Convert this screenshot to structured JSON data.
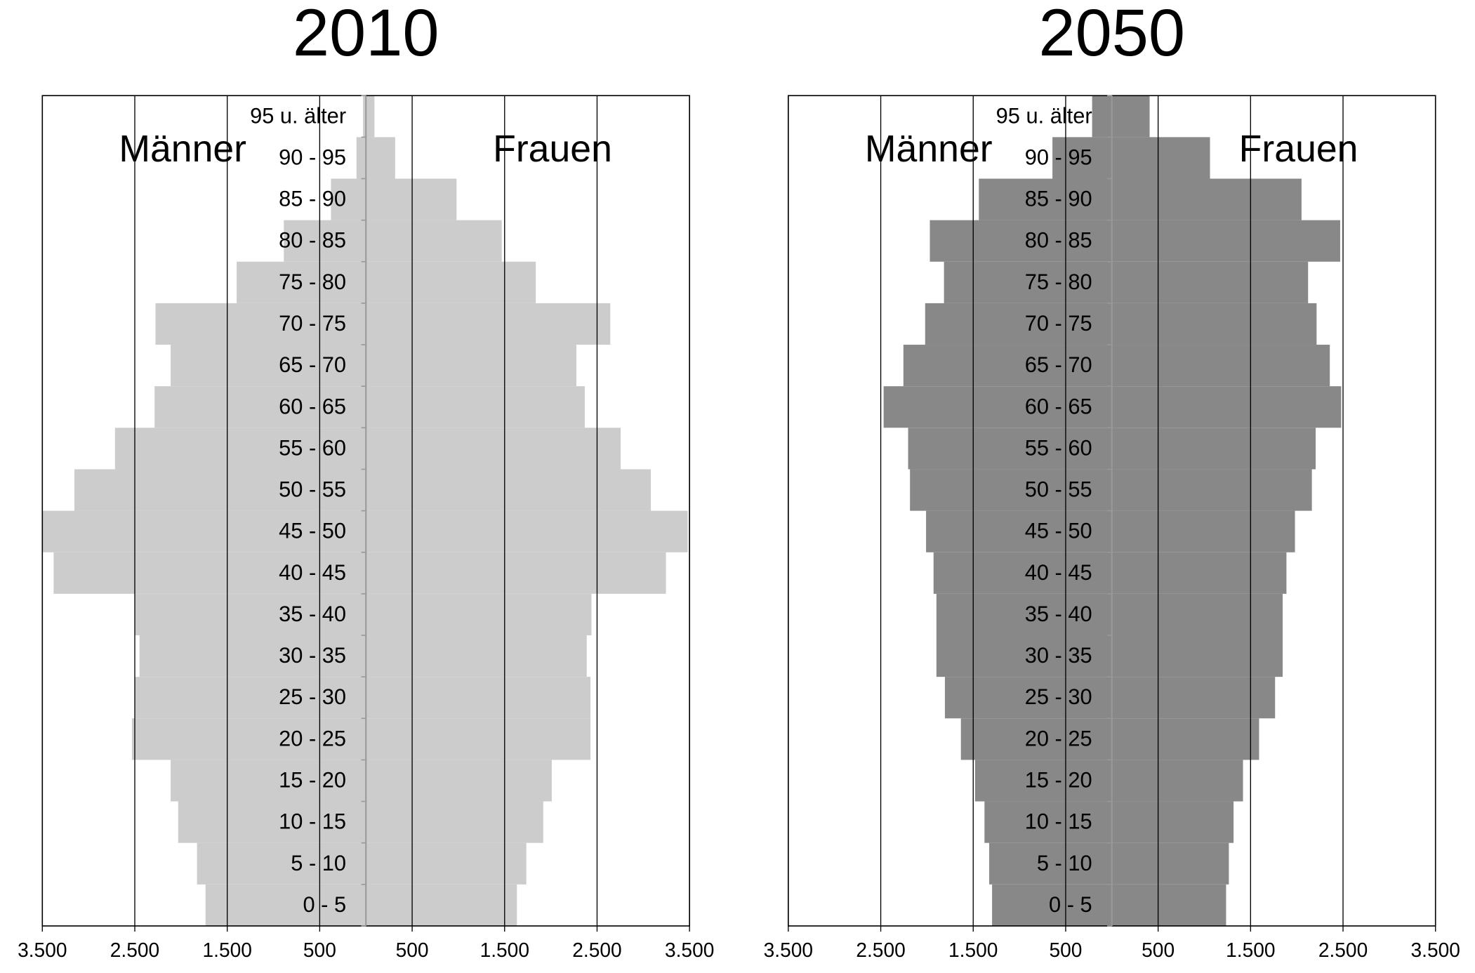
{
  "chart_data": [
    {
      "type": "pyramid",
      "title": "2010",
      "categories": [
        "0 - 5",
        "5 - 10",
        "10 - 15",
        "15 - 20",
        "20 - 25",
        "25 - 30",
        "30 - 35",
        "35 - 40",
        "40 - 45",
        "45 - 50",
        "50 - 55",
        "55 - 60",
        "60 - 65",
        "65 - 70",
        "70 - 75",
        "75 - 80",
        "80 - 85",
        "85 - 90",
        "90 - 95",
        "95 u. älter"
      ],
      "series": [
        {
          "name": "Männer",
          "color": "#cccccc",
          "values": [
            1735,
            1827,
            2031,
            2112,
            2531,
            2500,
            2449,
            2500,
            3378,
            3500,
            3153,
            2714,
            2286,
            2112,
            2276,
            1398,
            888,
            378,
            102,
            31
          ]
        },
        {
          "name": "Frauen",
          "color": "#cccccc",
          "values": [
            1633,
            1735,
            1918,
            2010,
            2429,
            2429,
            2388,
            2439,
            3245,
            3480,
            3082,
            2755,
            2367,
            2276,
            2643,
            1837,
            1469,
            980,
            316,
            92
          ]
        }
      ],
      "xlim": [
        -3500,
        3500
      ],
      "xticks": [
        {
          "value": -3500,
          "label": "3.500"
        },
        {
          "value": -2500,
          "label": "2.500"
        },
        {
          "value": -1500,
          "label": "1.500"
        },
        {
          "value": -500,
          "label": "500"
        },
        {
          "value": 500,
          "label": "500"
        },
        {
          "value": 1500,
          "label": "1.500"
        },
        {
          "value": 2500,
          "label": "2.500"
        },
        {
          "value": 3500,
          "label": "3.500"
        }
      ],
      "grid": true
    },
    {
      "type": "pyramid",
      "title": "2050",
      "categories": [
        "0 - 5",
        "5 - 10",
        "10 - 15",
        "15 - 20",
        "20 - 25",
        "25 - 30",
        "30 - 35",
        "35 - 40",
        "40 - 45",
        "45 - 50",
        "50 - 55",
        "55 - 60",
        "60 - 65",
        "65 - 70",
        "70 - 75",
        "75 - 80",
        "80 - 85",
        "85 - 90",
        "90 - 95",
        "95 u. älter"
      ],
      "series": [
        {
          "name": "Männer",
          "color": "#888888",
          "values": [
            1296,
            1327,
            1378,
            1480,
            1633,
            1806,
            1898,
            1898,
            1929,
            2010,
            2184,
            2204,
            2469,
            2255,
            2020,
            1816,
            1969,
            1439,
            643,
            214
          ]
        },
        {
          "name": "Frauen",
          "color": "#888888",
          "values": [
            1235,
            1265,
            1316,
            1418,
            1592,
            1765,
            1847,
            1847,
            1888,
            1980,
            2163,
            2204,
            2480,
            2357,
            2214,
            2122,
            2469,
            2051,
            1061,
            408
          ]
        }
      ],
      "xlim": [
        -3500,
        3500
      ],
      "xticks": [
        {
          "value": -3500,
          "label": "3.500"
        },
        {
          "value": -2500,
          "label": "2.500"
        },
        {
          "value": -1500,
          "label": "1.500"
        },
        {
          "value": -500,
          "label": "500"
        },
        {
          "value": 500,
          "label": "500"
        },
        {
          "value": 1500,
          "label": "1.500"
        },
        {
          "value": 2500,
          "label": "2.500"
        },
        {
          "value": 3500,
          "label": "3.500"
        }
      ],
      "grid": true
    }
  ]
}
